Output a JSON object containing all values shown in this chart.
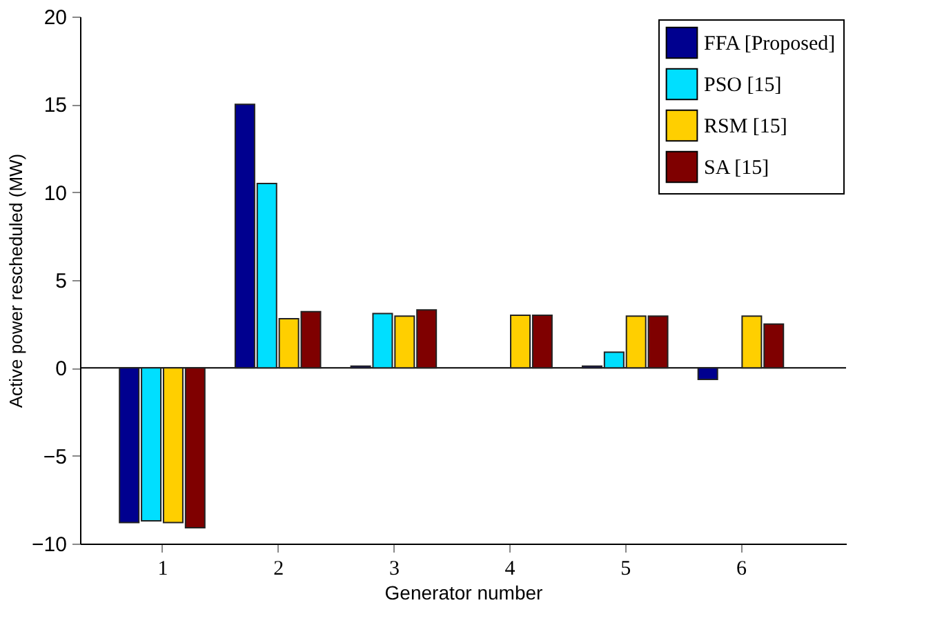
{
  "chart_data": {
    "type": "bar",
    "xlabel": "Generator number",
    "ylabel": "Active power rescheduled (MW)",
    "categories": [
      "1",
      "2",
      "3",
      "4",
      "5",
      "6"
    ],
    "series": [
      {
        "name": "FFA [Proposed]",
        "color": "#00008f",
        "values": [
          -8.8,
          15.0,
          0.1,
          null,
          0.1,
          -0.65
        ]
      },
      {
        "name": "PSO [15]",
        "color": "#00dfff",
        "values": [
          -8.7,
          10.5,
          3.1,
          null,
          0.9,
          null
        ]
      },
      {
        "name": "RSM [15]",
        "color": "#ffcf00",
        "values": [
          -8.8,
          2.8,
          2.95,
          3.0,
          2.95,
          2.95
        ]
      },
      {
        "name": "SA [15]",
        "color": "#7f0000",
        "values": [
          -9.1,
          3.2,
          3.3,
          3.0,
          2.95,
          2.5
        ]
      }
    ],
    "ylim": [
      -10,
      20
    ],
    "yticks": [
      -10,
      -5,
      0,
      5,
      10,
      15,
      20
    ],
    "ref_lines": [
      {
        "axis": "y",
        "value": 0
      }
    ],
    "legend": "top right",
    "grid": false
  }
}
